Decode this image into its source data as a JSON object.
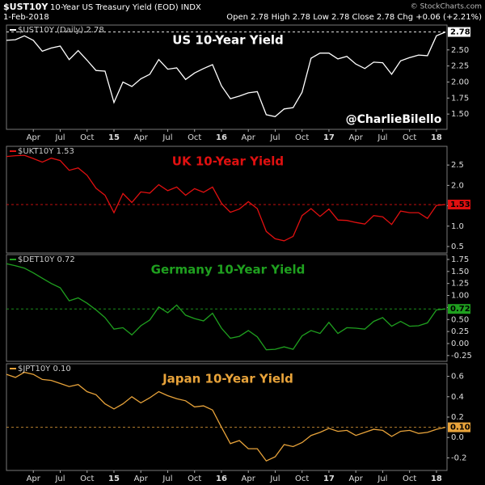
{
  "header": {
    "symbol": "$UST10Y",
    "description": "10-Year US Treasury Yield (EOD) INDX",
    "date": "1-Feb-2018",
    "quote": "Open 2.78  High 2.78  Low 2.78  Close 2.78  Chg +0.06 (+2.21%)",
    "source": "© StockCharts.com"
  },
  "chart_data": [
    {
      "type": "line",
      "title": "US 10-Year Yield",
      "annotation": "@CharlieBilello",
      "categories": [
        null,
        null,
        null,
        "Apr",
        null,
        null,
        "Jul",
        null,
        null,
        "Oct",
        null,
        null,
        "15",
        null,
        null,
        "Apr",
        null,
        null,
        "Jul",
        null,
        null,
        "Oct",
        null,
        null,
        "16",
        null,
        null,
        "Apr",
        null,
        null,
        "Jul",
        null,
        null,
        "Oct",
        null,
        null,
        "17",
        null,
        null,
        "Apr",
        null,
        null,
        "Jul",
        null,
        null,
        "Oct",
        null,
        null,
        "18",
        null
      ],
      "series": [
        {
          "name": "$UST10Y (Daily) 2.78",
          "color": "#ffffff",
          "last_label": "2.78",
          "values": [
            2.65,
            2.66,
            2.72,
            2.65,
            2.48,
            2.53,
            2.56,
            2.35,
            2.49,
            2.34,
            2.18,
            2.17,
            1.68,
            2.0,
            1.93,
            2.05,
            2.12,
            2.35,
            2.2,
            2.22,
            2.04,
            2.14,
            2.21,
            2.27,
            1.94,
            1.74,
            1.78,
            1.83,
            1.85,
            1.49,
            1.46,
            1.58,
            1.6,
            1.84,
            2.37,
            2.45,
            2.45,
            2.36,
            2.4,
            2.28,
            2.21,
            2.31,
            2.3,
            2.12,
            2.33,
            2.38,
            2.42,
            2.41,
            2.72,
            2.78
          ]
        }
      ],
      "ylim": [
        1.3,
        2.85
      ],
      "yticks": [
        {
          "value": 1.5,
          "label": "1.50"
        },
        1.75,
        {
          "value": 2,
          "label": "2.00"
        },
        2.25,
        {
          "value": 2.5,
          "label": "2.50"
        }
      ],
      "grid": false
    },
    {
      "type": "line",
      "title": "UK 10-Year Yield",
      "series": [
        {
          "name": "$UKT10Y 1.53",
          "color": "#e01010",
          "last_label": "1.53",
          "values": [
            2.71,
            2.73,
            2.74,
            2.66,
            2.57,
            2.67,
            2.61,
            2.37,
            2.43,
            2.25,
            1.93,
            1.76,
            1.33,
            1.8,
            1.58,
            1.84,
            1.81,
            2.02,
            1.87,
            1.96,
            1.76,
            1.92,
            1.83,
            1.96,
            1.56,
            1.34,
            1.42,
            1.6,
            1.43,
            0.87,
            0.69,
            0.64,
            0.75,
            1.26,
            1.43,
            1.24,
            1.42,
            1.15,
            1.14,
            1.09,
            1.05,
            1.26,
            1.23,
            1.04,
            1.37,
            1.33,
            1.33,
            1.19,
            1.51,
            1.53
          ]
        }
      ],
      "ylim": [
        0.4,
        2.9
      ],
      "yticks": [
        0.5,
        {
          "value": 1,
          "label": "1.0"
        },
        1.5,
        {
          "value": 2,
          "label": "2.0"
        },
        2.5
      ],
      "grid": false
    },
    {
      "type": "line",
      "title": "Germany 10-Year Yield",
      "series": [
        {
          "name": "$DET10Y 0.72",
          "color": "#1fa01f",
          "last_label": "0.72",
          "values": [
            1.66,
            1.62,
            1.57,
            1.47,
            1.36,
            1.25,
            1.16,
            0.89,
            0.95,
            0.84,
            0.7,
            0.54,
            0.3,
            0.33,
            0.18,
            0.37,
            0.49,
            0.76,
            0.64,
            0.8,
            0.59,
            0.52,
            0.47,
            0.63,
            0.32,
            0.11,
            0.15,
            0.27,
            0.14,
            -0.13,
            -0.12,
            -0.07,
            -0.12,
            0.16,
            0.27,
            0.21,
            0.44,
            0.21,
            0.33,
            0.32,
            0.3,
            0.46,
            0.54,
            0.36,
            0.46,
            0.36,
            0.37,
            0.43,
            0.7,
            0.72
          ]
        }
      ],
      "ylim": [
        -0.32,
        1.8
      ],
      "yticks": [
        {
          "value": -0.25,
          "label": "-0.25"
        },
        {
          "value": 0,
          "label": "0.00"
        },
        0.25,
        {
          "value": 0.5,
          "label": "0.50"
        },
        0.75,
        {
          "value": 1,
          "label": "1.00"
        },
        1.25,
        {
          "value": 1.5,
          "label": "1.50"
        },
        1.75
      ],
      "grid": false
    },
    {
      "type": "line",
      "title": "Japan 10-Year Yield",
      "categories": [
        null,
        null,
        null,
        "Apr",
        null,
        null,
        "Jul",
        null,
        null,
        "Oct",
        null,
        null,
        "15",
        null,
        null,
        "Apr",
        null,
        null,
        "Jul",
        null,
        null,
        "Oct",
        null,
        null,
        "16",
        null,
        null,
        "Apr",
        null,
        null,
        "Jul",
        null,
        null,
        "Oct",
        null,
        null,
        "17",
        null,
        null,
        "Apr",
        null,
        null,
        "Jul",
        null,
        null,
        "Oct",
        null,
        null,
        "18",
        null
      ],
      "series": [
        {
          "name": "$JPT10Y 0.10",
          "color": "#e8a33a",
          "last_label": "0.10",
          "values": [
            0.62,
            0.59,
            0.64,
            0.62,
            0.57,
            0.56,
            0.53,
            0.5,
            0.52,
            0.45,
            0.42,
            0.33,
            0.28,
            0.33,
            0.4,
            0.34,
            0.39,
            0.45,
            0.41,
            0.38,
            0.36,
            0.3,
            0.31,
            0.27,
            0.1,
            -0.06,
            -0.03,
            -0.11,
            -0.11,
            -0.23,
            -0.19,
            -0.07,
            -0.09,
            -0.05,
            0.02,
            0.05,
            0.09,
            0.06,
            0.07,
            0.02,
            0.05,
            0.08,
            0.07,
            0.01,
            0.06,
            0.07,
            0.04,
            0.05,
            0.08,
            0.1
          ]
        }
      ],
      "ylim": [
        -0.3,
        0.7
      ],
      "yticks": [
        -0.2,
        {
          "value": 0,
          "label": "0.0"
        },
        0.2,
        0.4,
        0.6
      ],
      "grid": false
    }
  ]
}
